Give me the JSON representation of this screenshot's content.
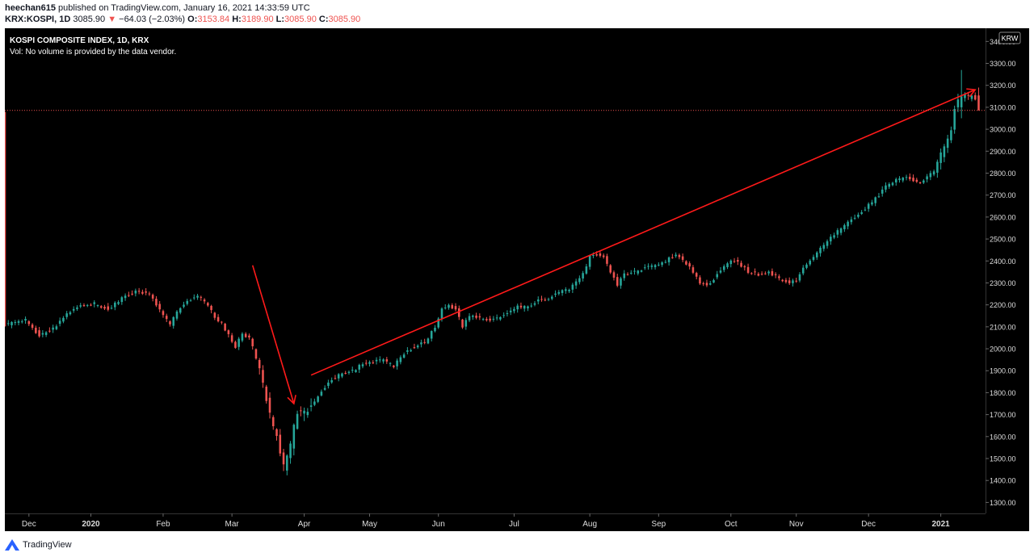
{
  "header": {
    "user": "heechan615",
    "published": "published on TradingView.com, January 16, 2021 14:33:59 UTC",
    "symbol": "KRX:KOSPI, 1D",
    "last": "3085.90",
    "change": "−64.03 (−2.03%)",
    "o_label": "O:",
    "o_value": "3153.84",
    "h_label": "H:",
    "h_value": "3189.90",
    "l_label": "L:",
    "l_value": "3085.90",
    "c_label": "C:",
    "c_value": "3085.90"
  },
  "colors": {
    "up": "#26a69a",
    "down": "#ef5350",
    "arrow": "#ff1a1a",
    "background": "#000000"
  },
  "chart_data": {
    "type": "candlestick",
    "title": "KOSPI COMPOSITE INDEX, 1D, KRX",
    "subtitle": "Vol: No volume is provided by the data vendor.",
    "currency": "KRW",
    "last_price_label": "3085.90",
    "ylim": [
      1250,
      3460
    ],
    "yticks": [
      1300,
      1400,
      1500,
      1600,
      1700,
      1800,
      1900,
      2000,
      2100,
      2200,
      2300,
      2400,
      2500,
      2600,
      2700,
      2800,
      2900,
      3000,
      3100,
      3200,
      3300,
      3400
    ],
    "ytick_labels": [
      "1300.00",
      "1400.00",
      "1500.00",
      "1600.00",
      "1700.00",
      "1800.00",
      "1900.00",
      "2000.00",
      "2100.00",
      "2200.00",
      "2300.00",
      "2400.00",
      "2500.00",
      "2600.00",
      "2700.00",
      "2800.00",
      "2900.00",
      "3000.00",
      "3100.00",
      "3200.00",
      "3300.00",
      "3400.00"
    ],
    "x_labels": [
      {
        "label": "Dec",
        "day": 7
      },
      {
        "label": "2020",
        "day": 25,
        "bold": true
      },
      {
        "label": "Feb",
        "day": 46
      },
      {
        "label": "Mar",
        "day": 66
      },
      {
        "label": "Apr",
        "day": 87
      },
      {
        "label": "May",
        "day": 106
      },
      {
        "label": "Jun",
        "day": 126
      },
      {
        "label": "Jul",
        "day": 148
      },
      {
        "label": "Aug",
        "day": 170
      },
      {
        "label": "Sep",
        "day": 190
      },
      {
        "label": "Oct",
        "day": 211
      },
      {
        "label": "Nov",
        "day": 230
      },
      {
        "label": "Dec",
        "day": 251
      },
      {
        "label": "2021",
        "day": 272,
        "bold": true
      }
    ],
    "x_range": [
      0,
      285
    ],
    "anchors": [
      [
        0,
        2110
      ],
      [
        6,
        2130
      ],
      [
        10,
        2060
      ],
      [
        14,
        2090
      ],
      [
        18,
        2160
      ],
      [
        22,
        2200
      ],
      [
        26,
        2205
      ],
      [
        30,
        2180
      ],
      [
        34,
        2230
      ],
      [
        38,
        2260
      ],
      [
        42,
        2250
      ],
      [
        44,
        2200
      ],
      [
        46,
        2150
      ],
      [
        48,
        2110
      ],
      [
        50,
        2170
      ],
      [
        53,
        2220
      ],
      [
        56,
        2240
      ],
      [
        59,
        2200
      ],
      [
        61,
        2140
      ],
      [
        63,
        2120
      ],
      [
        65,
        2060
      ],
      [
        67,
        2010
      ],
      [
        69,
        2070
      ],
      [
        71,
        2050
      ],
      [
        73,
        1960
      ],
      [
        75,
        1840
      ],
      [
        77,
        1700
      ],
      [
        79,
        1600
      ],
      [
        81,
        1460
      ],
      [
        83,
        1560
      ],
      [
        85,
        1720
      ],
      [
        87,
        1700
      ],
      [
        89,
        1740
      ],
      [
        92,
        1810
      ],
      [
        95,
        1860
      ],
      [
        98,
        1890
      ],
      [
        101,
        1900
      ],
      [
        104,
        1930
      ],
      [
        107,
        1940
      ],
      [
        110,
        1950
      ],
      [
        113,
        1920
      ],
      [
        116,
        1980
      ],
      [
        119,
        2010
      ],
      [
        122,
        2030
      ],
      [
        125,
        2100
      ],
      [
        127,
        2180
      ],
      [
        129,
        2200
      ],
      [
        131,
        2180
      ],
      [
        133,
        2100
      ],
      [
        135,
        2150
      ],
      [
        138,
        2140
      ],
      [
        141,
        2130
      ],
      [
        143,
        2140
      ],
      [
        146,
        2160
      ],
      [
        149,
        2190
      ],
      [
        152,
        2190
      ],
      [
        155,
        2220
      ],
      [
        158,
        2230
      ],
      [
        161,
        2260
      ],
      [
        164,
        2270
      ],
      [
        166,
        2300
      ],
      [
        168,
        2340
      ],
      [
        170,
        2420
      ],
      [
        172,
        2430
      ],
      [
        174,
        2420
      ],
      [
        176,
        2350
      ],
      [
        178,
        2290
      ],
      [
        180,
        2340
      ],
      [
        183,
        2350
      ],
      [
        186,
        2370
      ],
      [
        189,
        2380
      ],
      [
        192,
        2400
      ],
      [
        195,
        2430
      ],
      [
        198,
        2390
      ],
      [
        200,
        2350
      ],
      [
        202,
        2300
      ],
      [
        204,
        2290
      ],
      [
        206,
        2320
      ],
      [
        208,
        2360
      ],
      [
        210,
        2390
      ],
      [
        212,
        2400
      ],
      [
        214,
        2380
      ],
      [
        216,
        2350
      ],
      [
        219,
        2340
      ],
      [
        222,
        2350
      ],
      [
        225,
        2320
      ],
      [
        228,
        2300
      ],
      [
        230,
        2310
      ],
      [
        232,
        2370
      ],
      [
        235,
        2420
      ],
      [
        238,
        2470
      ],
      [
        241,
        2520
      ],
      [
        244,
        2560
      ],
      [
        247,
        2600
      ],
      [
        250,
        2640
      ],
      [
        252,
        2670
      ],
      [
        254,
        2700
      ],
      [
        256,
        2740
      ],
      [
        258,
        2760
      ],
      [
        261,
        2780
      ],
      [
        264,
        2770
      ],
      [
        266,
        2760
      ],
      [
        268,
        2780
      ],
      [
        270,
        2810
      ],
      [
        272,
        2880
      ],
      [
        274,
        2950
      ],
      [
        275,
        3000
      ],
      [
        276,
        3090
      ],
      [
        277,
        3130
      ],
      [
        278,
        3150
      ],
      [
        279,
        3160
      ],
      [
        280,
        3150
      ],
      [
        281,
        3160
      ],
      [
        282,
        3150
      ],
      [
        283,
        3085
      ]
    ],
    "special_candles": [
      {
        "day": 278,
        "open": 3100,
        "high": 3270,
        "low": 3050,
        "close": 3150
      },
      {
        "day": 283,
        "open": 3153.84,
        "high": 3189.9,
        "low": 3085.9,
        "close": 3085.9
      }
    ],
    "annotations": [
      {
        "type": "arrow",
        "from": [
          72,
          2380
        ],
        "to": [
          84,
          1750
        ]
      },
      {
        "type": "arrow",
        "from": [
          89,
          1880
        ],
        "to": [
          282,
          3180
        ]
      }
    ]
  }
}
